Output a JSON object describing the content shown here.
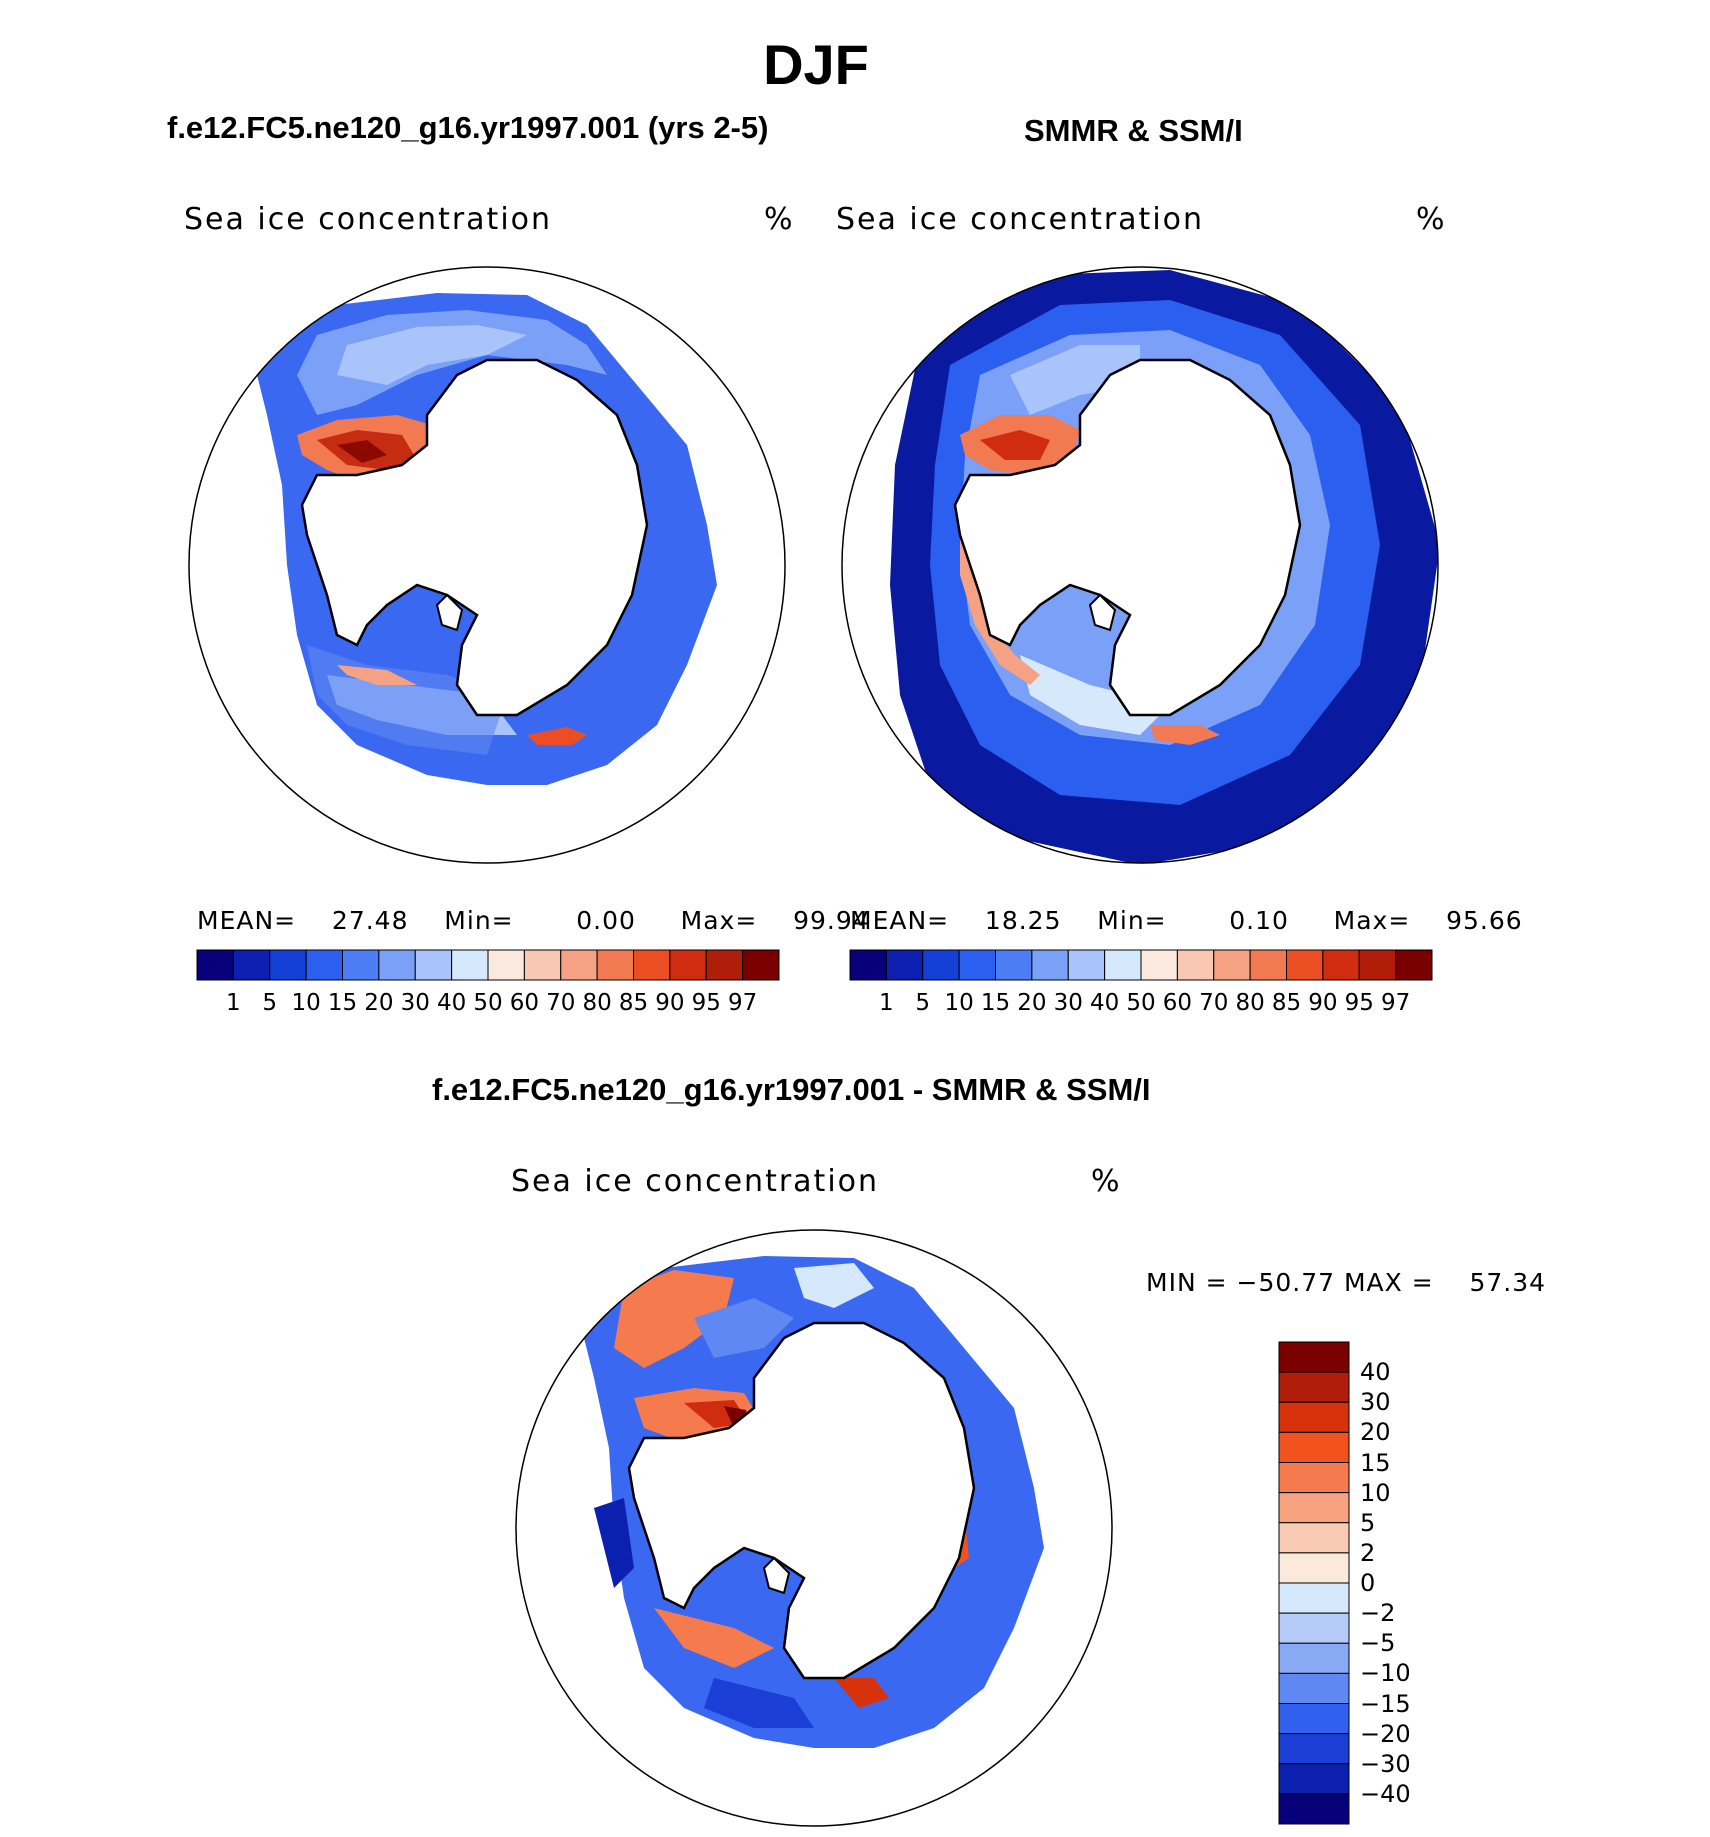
{
  "figure": {
    "season": "DJF"
  },
  "panels": [
    {
      "title": "f.e12.FC5.ne120_g16.yr1997.001 (yrs 2-5)",
      "variable": "Sea ice concentration",
      "units": "%",
      "stats": {
        "mean_label": "MEAN=",
        "mean": "27.48",
        "min_label": "Min=",
        "min": "0.00",
        "max_label": "Max=",
        "max": "99.94"
      }
    },
    {
      "title": "SMMR & SSM/I",
      "variable": "Sea ice concentration",
      "units": "%",
      "stats": {
        "mean_label": "MEAN=",
        "mean": "18.25",
        "min_label": "Min=",
        "min": "0.10",
        "max_label": "Max=",
        "max": "95.66"
      }
    }
  ],
  "colorbar": {
    "levels": [
      "1",
      "5",
      "10",
      "15",
      "20",
      "30",
      "40",
      "50",
      "60",
      "70",
      "80",
      "85",
      "90",
      "95",
      "97"
    ],
    "colors": [
      "#08007a",
      "#0c1fb0",
      "#1540d8",
      "#2a5ff0",
      "#4c7df5",
      "#7aa0f7",
      "#a8c4fa",
      "#d6e8fb",
      "#fbeadf",
      "#f8c8b4",
      "#f5a183",
      "#f27a52",
      "#ec4e24",
      "#d02c10",
      "#b01e0a",
      "#7a0000"
    ]
  },
  "diff_panel": {
    "title": "f.e12.FC5.ne120_g16.yr1997.001 - SMMR & SSM/I",
    "variable": "Sea ice concentration",
    "units": "%",
    "stats": {
      "min_label": "MIN =",
      "min": "−50.77",
      "max_label": "MAX =",
      "max": "57.34"
    },
    "colorbar": {
      "levels": [
        "40",
        "30",
        "20",
        "15",
        "10",
        "5",
        "2",
        "0",
        "−2",
        "−5",
        "−10",
        "−15",
        "−20",
        "−30",
        "−40"
      ],
      "colors": [
        "#7a0000",
        "#b01e0a",
        "#d8320c",
        "#f2531e",
        "#f57a4e",
        "#f7a27e",
        "#f9cbb4",
        "#fbeadb",
        "#d6e8fb",
        "#b4cbf8",
        "#88aaf5",
        "#5f88f2",
        "#3260ee",
        "#1a3ed6",
        "#0c20b0",
        "#06007a"
      ]
    }
  }
}
